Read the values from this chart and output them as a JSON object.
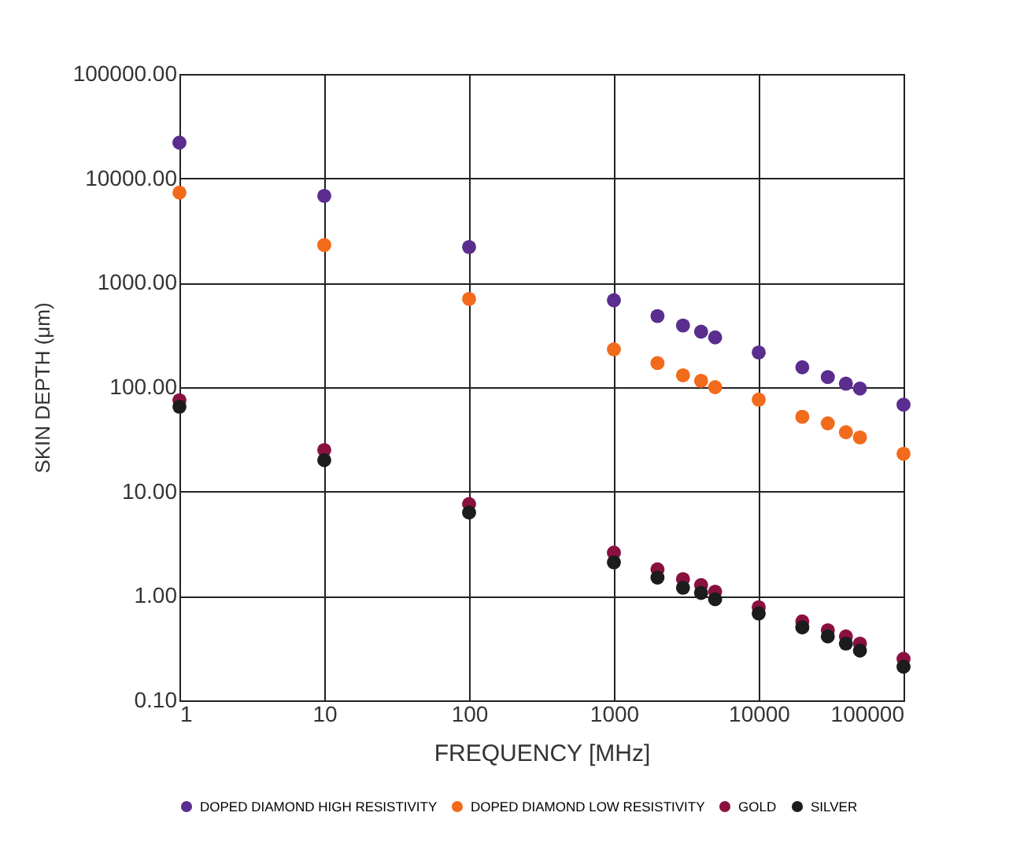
{
  "chart_data": {
    "type": "scatter",
    "xlabel": "FREQUENCY [MHz]",
    "ylabel": "SKIN DEPTH (μm)",
    "log": "xy",
    "x": [
      1,
      10,
      100,
      1000,
      2000,
      3000,
      4000,
      5000,
      10000,
      20000,
      30000,
      40000,
      50000,
      100000
    ],
    "xlim": [
      1,
      100000
    ],
    "xticks": [
      1,
      10,
      100,
      1000,
      10000,
      100000
    ],
    "ylim": [
      0.1,
      100000
    ],
    "yticks": [
      {
        "value": 0.1,
        "label": "0.10"
      },
      {
        "value": 1,
        "label": "1.00"
      },
      {
        "value": 10,
        "label": "10.00"
      },
      {
        "value": 100,
        "label": "100.00"
      },
      {
        "value": 1000,
        "label": "1000.00"
      },
      {
        "value": 10000,
        "label": "10000.00"
      },
      {
        "value": 100000,
        "label": "100000.00"
      }
    ],
    "grid": true,
    "legend": "bottom",
    "marker": "circle",
    "series": [
      {
        "name": "DOPED DIAMOND HIGH RESISTIVITY",
        "color": "#5a2d8f",
        "values": [
          22000,
          6800,
          2200,
          680,
          480,
          390,
          340,
          300,
          215,
          155,
          125,
          108,
          97,
          68
        ]
      },
      {
        "name": "DOPED DIAMOND LOW RESISTIVITY",
        "color": "#f26a1b",
        "values": [
          7300,
          2300,
          700,
          230,
          170,
          130,
          115,
          100,
          76,
          52,
          45,
          37,
          33,
          23
        ]
      },
      {
        "name": "GOLD",
        "color": "#8a1040",
        "values": [
          75,
          25,
          7.6,
          2.6,
          1.8,
          1.45,
          1.27,
          1.1,
          0.78,
          0.57,
          0.47,
          0.41,
          0.35,
          0.25
        ]
      },
      {
        "name": "SILVER",
        "color": "#1c1c1c",
        "values": [
          65,
          20,
          6.3,
          2.1,
          1.5,
          1.2,
          1.07,
          0.93,
          0.68,
          0.5,
          0.41,
          0.35,
          0.3,
          0.21
        ]
      }
    ]
  }
}
